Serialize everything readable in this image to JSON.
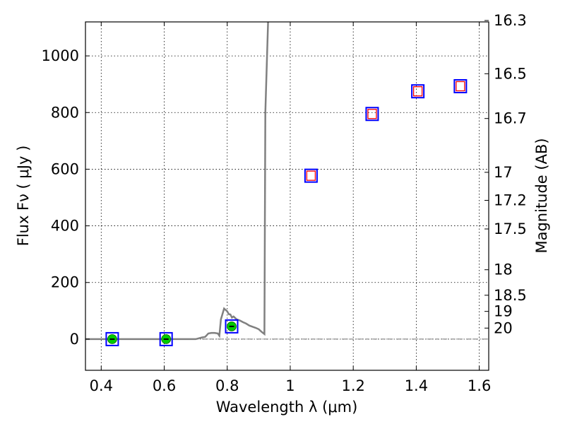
{
  "chart_data": {
    "type": "scatter",
    "title": "",
    "xlabel": "Wavelength  λ (μm)",
    "ylabel": "Flux  Fν  ( μJy )",
    "y2label": "Magnitude (AB)",
    "xlim": [
      0.35,
      1.63
    ],
    "ylim": [
      -110,
      1120
    ],
    "grid": true,
    "x_ticks": [
      0.4,
      0.6,
      0.8,
      1,
      1.2,
      1.4,
      1.6
    ],
    "x_tick_labels": [
      "0.4",
      "0.6",
      "0.8",
      "1",
      "1.2",
      "1.4",
      "1.6"
    ],
    "y_ticks": [
      0,
      200,
      400,
      600,
      800,
      1000
    ],
    "y_tick_labels": [
      "0",
      "200",
      "400",
      "600",
      "800",
      "1000"
    ],
    "mag_tick_labels": [
      "16.3",
      "16.5",
      "16.7",
      "17",
      "17.2",
      "17.5",
      "18",
      "18.5",
      "19",
      "20"
    ],
    "mag_tick_flux": [
      1125,
      937,
      779,
      589,
      490,
      389,
      245,
      155,
      98,
      39
    ],
    "series": [
      {
        "kind": "model_line",
        "color": "#808080",
        "x": [
          0.35,
          0.7,
          0.71,
          0.72,
          0.73,
          0.74,
          0.75,
          0.76,
          0.77,
          0.775,
          0.78,
          0.79,
          0.8,
          0.805,
          0.81,
          0.815,
          0.82,
          0.83,
          0.84,
          0.85,
          0.86,
          0.87,
          0.88,
          0.89,
          0.9,
          0.91,
          0.918,
          0.921,
          0.93
        ],
        "y": [
          0,
          0,
          3,
          6,
          8,
          20,
          22,
          22,
          20,
          12,
          70,
          108,
          98,
          88,
          87,
          76,
          80,
          70,
          66,
          60,
          55,
          48,
          44,
          40,
          35,
          25,
          18,
          800,
          1130
        ]
      },
      {
        "kind": "observed_photometry",
        "marker": "square",
        "edge_color": "#0000ff",
        "x": [
          0.435,
          0.606,
          0.814,
          1.066,
          1.26,
          1.405,
          1.54
        ],
        "y": [
          0,
          0,
          45,
          577,
          795,
          875,
          893
        ]
      },
      {
        "kind": "model_photometry",
        "marker": "square",
        "edge_color": "#ff0000",
        "x": [
          1.066,
          1.26,
          1.405,
          1.54
        ],
        "y": [
          577,
          795,
          875,
          893
        ]
      },
      {
        "kind": "detections",
        "marker": "circle",
        "fill_color": "#00cc00",
        "x": [
          0.435,
          0.606,
          0.814
        ],
        "y": [
          0,
          0,
          45
        ]
      }
    ],
    "zero_line": {
      "y": 0,
      "style": "dash-dot",
      "color": "#404040"
    }
  }
}
